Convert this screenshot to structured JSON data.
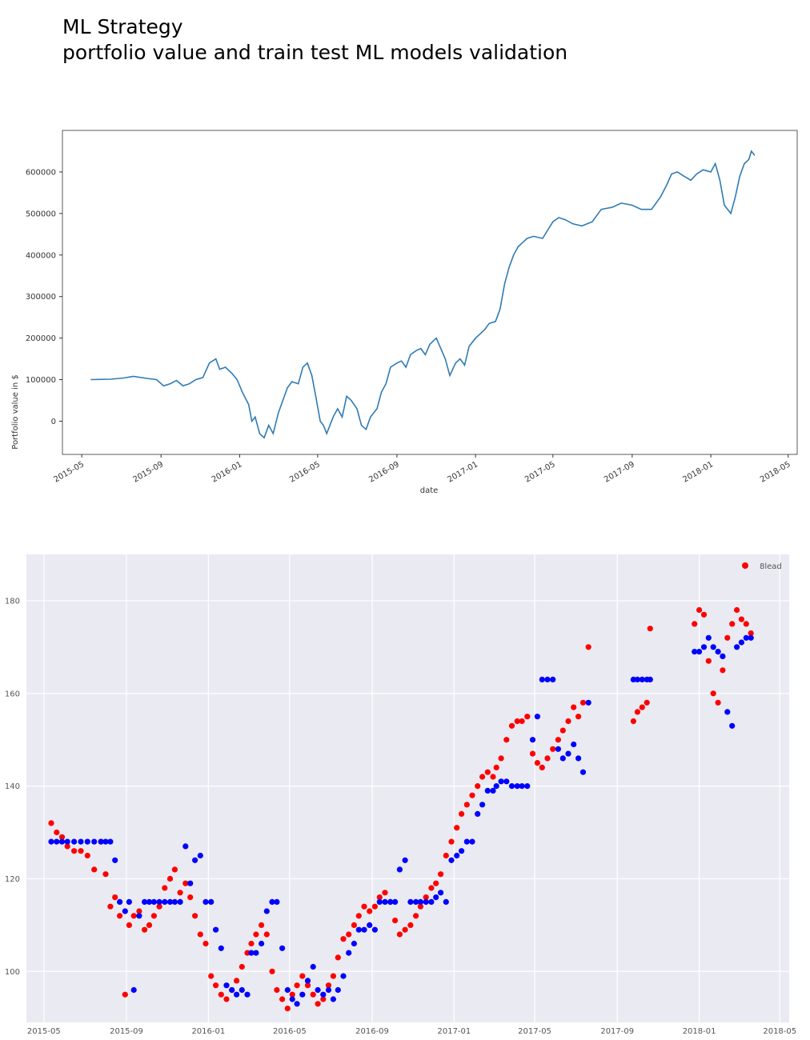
{
  "header": {
    "title": "ML Strategy",
    "subtitle": "portfolio value and train test ML models validation"
  },
  "chart_data": [
    {
      "type": "line",
      "title": "",
      "xlabel": "date",
      "ylabel": "Portfolio value in $",
      "xlim": [
        "2015-04-01",
        "2018-05-15"
      ],
      "ylim": [
        -80000,
        700000
      ],
      "yticks": [
        0,
        100000,
        200000,
        300000,
        400000,
        500000,
        600000
      ],
      "xticks": [
        "2015-05",
        "2015-09",
        "2016-01",
        "2016-05",
        "2016-09",
        "2017-01",
        "2017-05",
        "2017-09",
        "2018-01",
        "2018-05"
      ],
      "grid": false,
      "color": "#2f7bb3",
      "series": [
        {
          "x": [
            "2015-05-15",
            "2015-06-15",
            "2015-07-05",
            "2015-07-20",
            "2015-08-10",
            "2015-08-25",
            "2015-09-05",
            "2015-09-15",
            "2015-09-25",
            "2015-10-05",
            "2015-10-15",
            "2015-10-25",
            "2015-11-05",
            "2015-11-15",
            "2015-11-25",
            "2015-12-01",
            "2015-12-10",
            "2015-12-20",
            "2015-12-28",
            "2016-01-05",
            "2016-01-10",
            "2016-01-15",
            "2016-01-20",
            "2016-01-25",
            "2016-02-01",
            "2016-02-08",
            "2016-02-15",
            "2016-02-22",
            "2016-03-01",
            "2016-03-08",
            "2016-03-15",
            "2016-03-22",
            "2016-04-01",
            "2016-04-08",
            "2016-04-15",
            "2016-04-22",
            "2016-04-28",
            "2016-05-05",
            "2016-05-10",
            "2016-05-15",
            "2016-05-20",
            "2016-05-25",
            "2016-06-01",
            "2016-06-08",
            "2016-06-15",
            "2016-06-22",
            "2016-07-01",
            "2016-07-08",
            "2016-07-15",
            "2016-07-22",
            "2016-08-01",
            "2016-08-08",
            "2016-08-15",
            "2016-08-22",
            "2016-09-01",
            "2016-09-08",
            "2016-09-15",
            "2016-09-22",
            "2016-10-01",
            "2016-10-08",
            "2016-10-15",
            "2016-10-22",
            "2016-11-01",
            "2016-11-08",
            "2016-11-15",
            "2016-11-22",
            "2016-12-01",
            "2016-12-08",
            "2016-12-15",
            "2016-12-22",
            "2017-01-01",
            "2017-01-08",
            "2017-01-15",
            "2017-01-22",
            "2017-02-01",
            "2017-02-08",
            "2017-02-15",
            "2017-02-22",
            "2017-03-01",
            "2017-03-08",
            "2017-03-15",
            "2017-03-22",
            "2017-04-01",
            "2017-04-15",
            "2017-05-01",
            "2017-05-10",
            "2017-05-20",
            "2017-06-01",
            "2017-06-15",
            "2017-07-01",
            "2017-07-15",
            "2017-08-01",
            "2017-08-15",
            "2017-09-01",
            "2017-09-15",
            "2017-10-01",
            "2017-10-15",
            "2017-10-25",
            "2017-11-01",
            "2017-11-10",
            "2017-11-20",
            "2017-12-01",
            "2017-12-10",
            "2017-12-20",
            "2018-01-01",
            "2018-01-08",
            "2018-01-15",
            "2018-01-22",
            "2018-02-01",
            "2018-02-08",
            "2018-02-15",
            "2018-02-22",
            "2018-03-01",
            "2018-03-05",
            "2018-03-10"
          ],
          "y": [
            100000,
            101000,
            104000,
            108000,
            103000,
            100000,
            85000,
            90000,
            98000,
            85000,
            90000,
            100000,
            105000,
            140000,
            150000,
            125000,
            130000,
            115000,
            100000,
            70000,
            55000,
            40000,
            0,
            10000,
            -30000,
            -40000,
            -10000,
            -30000,
            20000,
            50000,
            80000,
            95000,
            90000,
            130000,
            140000,
            110000,
            60000,
            0,
            -10000,
            -30000,
            -10000,
            10000,
            30000,
            10000,
            60000,
            50000,
            30000,
            -10000,
            -20000,
            10000,
            30000,
            70000,
            90000,
            130000,
            140000,
            145000,
            130000,
            160000,
            170000,
            175000,
            160000,
            185000,
            200000,
            175000,
            150000,
            110000,
            140000,
            150000,
            135000,
            180000,
            200000,
            210000,
            220000,
            235000,
            240000,
            270000,
            330000,
            370000,
            400000,
            420000,
            430000,
            440000,
            445000,
            440000,
            480000,
            490000,
            485000,
            475000,
            470000,
            480000,
            510000,
            515000,
            525000,
            520000,
            510000,
            510000,
            540000,
            570000,
            595000,
            600000,
            590000,
            580000,
            595000,
            605000,
            600000,
            620000,
            580000,
            520000,
            500000,
            540000,
            590000,
            620000,
            630000,
            650000,
            640000
          ]
        }
      ]
    },
    {
      "type": "scatter",
      "title": "",
      "xlabel": "",
      "ylabel": "",
      "xlim": [
        "2015-04-05",
        "2018-05-15"
      ],
      "ylim": [
        89,
        190
      ],
      "yticks": [
        100,
        120,
        140,
        160,
        180
      ],
      "xticks": [
        "2015-05",
        "2015-09",
        "2016-01",
        "2016-05",
        "2016-09",
        "2017-01",
        "2017-05",
        "2017-09",
        "2018-01",
        "2018-05"
      ],
      "grid": true,
      "legend": "top-right",
      "legend_entries": [
        "8lead"
      ],
      "series": [
        {
          "name": "8lead",
          "color": "#ff0000",
          "x": [
            "2015-05-12",
            "2015-05-20",
            "2015-05-28",
            "2015-06-05",
            "2015-06-15",
            "2015-06-25",
            "2015-07-05",
            "2015-07-15",
            "2015-07-25",
            "2015-08-01",
            "2015-08-08",
            "2015-08-15",
            "2015-08-22",
            "2015-08-30",
            "2015-09-05",
            "2015-09-12",
            "2015-09-20",
            "2015-09-28",
            "2015-10-05",
            "2015-10-12",
            "2015-10-20",
            "2015-10-28",
            "2015-11-05",
            "2015-11-12",
            "2015-11-20",
            "2015-11-28",
            "2015-12-05",
            "2015-12-12",
            "2015-12-20",
            "2015-12-28",
            "2016-01-05",
            "2016-01-12",
            "2016-01-20",
            "2016-01-28",
            "2016-02-05",
            "2016-02-12",
            "2016-02-20",
            "2016-02-28",
            "2016-03-05",
            "2016-03-12",
            "2016-03-20",
            "2016-03-28",
            "2016-04-05",
            "2016-04-12",
            "2016-04-20",
            "2016-04-28",
            "2016-05-05",
            "2016-05-12",
            "2016-05-20",
            "2016-05-28",
            "2016-06-05",
            "2016-06-12",
            "2016-06-20",
            "2016-06-28",
            "2016-07-05",
            "2016-07-12",
            "2016-07-20",
            "2016-07-28",
            "2016-08-05",
            "2016-08-12",
            "2016-08-20",
            "2016-08-28",
            "2016-09-05",
            "2016-09-12",
            "2016-09-20",
            "2016-09-28",
            "2016-10-05",
            "2016-10-12",
            "2016-10-20",
            "2016-10-28",
            "2016-11-05",
            "2016-11-12",
            "2016-11-20",
            "2016-11-28",
            "2016-12-05",
            "2016-12-12",
            "2016-12-20",
            "2016-12-28",
            "2017-01-05",
            "2017-01-12",
            "2017-01-20",
            "2017-01-28",
            "2017-02-05",
            "2017-02-12",
            "2017-02-20",
            "2017-02-28",
            "2017-03-05",
            "2017-03-12",
            "2017-03-20",
            "2017-03-28",
            "2017-04-05",
            "2017-04-12",
            "2017-04-20",
            "2017-04-28",
            "2017-05-05",
            "2017-05-12",
            "2017-05-20",
            "2017-05-28",
            "2017-06-05",
            "2017-06-12",
            "2017-06-20",
            "2017-06-28",
            "2017-07-05",
            "2017-07-12",
            "2017-07-20",
            "2017-09-25",
            "2017-10-01",
            "2017-10-08",
            "2017-10-15",
            "2017-10-20",
            "2017-12-25",
            "2018-01-01",
            "2018-01-08",
            "2018-01-15",
            "2018-01-22",
            "2018-01-29",
            "2018-02-05",
            "2018-02-12",
            "2018-02-19",
            "2018-02-26",
            "2018-03-05",
            "2018-03-12",
            "2018-03-19"
          ],
          "y": [
            132,
            130,
            129,
            127,
            126,
            126,
            125,
            122,
            128,
            121,
            114,
            116,
            112,
            95,
            110,
            112,
            113,
            109,
            110,
            112,
            114,
            118,
            120,
            122,
            117,
            119,
            116,
            112,
            108,
            106,
            99,
            97,
            95,
            94,
            96,
            98,
            101,
            104,
            106,
            108,
            110,
            108,
            100,
            96,
            94,
            92,
            95,
            97,
            99,
            97,
            95,
            93,
            94,
            97,
            99,
            103,
            107,
            108,
            110,
            112,
            114,
            113,
            114,
            116,
            117,
            115,
            111,
            108,
            109,
            110,
            112,
            114,
            116,
            118,
            119,
            121,
            125,
            128,
            131,
            134,
            136,
            138,
            140,
            142,
            143,
            142,
            144,
            146,
            150,
            153,
            154,
            154,
            155,
            147,
            145,
            144,
            146,
            148,
            150,
            152,
            154,
            157,
            155,
            158,
            170,
            154,
            156,
            157,
            158,
            174,
            175,
            178,
            177,
            167,
            160,
            158,
            165,
            172,
            175,
            178,
            176,
            175,
            173
          ]
        },
        {
          "name": "",
          "color": "#0000ff",
          "x": [
            "2015-05-12",
            "2015-05-20",
            "2015-05-28",
            "2015-06-05",
            "2015-06-15",
            "2015-06-25",
            "2015-07-05",
            "2015-07-15",
            "2015-07-25",
            "2015-08-01",
            "2015-08-08",
            "2015-08-15",
            "2015-08-22",
            "2015-08-30",
            "2015-09-05",
            "2015-09-12",
            "2015-09-20",
            "2015-09-28",
            "2015-10-05",
            "2015-10-12",
            "2015-10-20",
            "2015-10-28",
            "2015-11-05",
            "2015-11-12",
            "2015-11-20",
            "2015-11-28",
            "2015-12-05",
            "2015-12-12",
            "2015-12-20",
            "2015-12-28",
            "2016-01-05",
            "2016-01-12",
            "2016-01-20",
            "2016-01-28",
            "2016-02-05",
            "2016-02-12",
            "2016-02-20",
            "2016-02-28",
            "2016-03-05",
            "2016-03-12",
            "2016-03-20",
            "2016-03-28",
            "2016-04-05",
            "2016-04-12",
            "2016-04-20",
            "2016-04-28",
            "2016-05-05",
            "2016-05-12",
            "2016-05-20",
            "2016-05-28",
            "2016-06-05",
            "2016-06-12",
            "2016-06-20",
            "2016-06-28",
            "2016-07-05",
            "2016-07-12",
            "2016-07-20",
            "2016-07-28",
            "2016-08-05",
            "2016-08-12",
            "2016-08-20",
            "2016-08-28",
            "2016-09-05",
            "2016-09-12",
            "2016-09-20",
            "2016-09-28",
            "2016-10-05",
            "2016-10-12",
            "2016-10-20",
            "2016-10-28",
            "2016-11-05",
            "2016-11-12",
            "2016-11-20",
            "2016-11-28",
            "2016-12-05",
            "2016-12-12",
            "2016-12-20",
            "2016-12-28",
            "2017-01-05",
            "2017-01-12",
            "2017-01-20",
            "2017-01-28",
            "2017-02-05",
            "2017-02-12",
            "2017-02-20",
            "2017-02-28",
            "2017-03-05",
            "2017-03-12",
            "2017-03-20",
            "2017-03-28",
            "2017-04-05",
            "2017-04-12",
            "2017-04-20",
            "2017-04-28",
            "2017-05-05",
            "2017-05-12",
            "2017-05-20",
            "2017-05-28",
            "2017-06-05",
            "2017-06-12",
            "2017-06-20",
            "2017-06-28",
            "2017-07-05",
            "2017-07-12",
            "2017-07-20",
            "2017-09-25",
            "2017-10-01",
            "2017-10-08",
            "2017-10-15",
            "2017-10-20",
            "2017-12-25",
            "2018-01-01",
            "2018-01-08",
            "2018-01-15",
            "2018-01-22",
            "2018-01-29",
            "2018-02-05",
            "2018-02-12",
            "2018-02-19",
            "2018-02-26",
            "2018-03-05",
            "2018-03-12",
            "2018-03-19"
          ],
          "y": [
            128,
            128,
            128,
            128,
            128,
            128,
            128,
            128,
            128,
            128,
            128,
            124,
            115,
            113,
            115,
            96,
            112,
            115,
            115,
            115,
            115,
            115,
            115,
            115,
            115,
            127,
            119,
            124,
            125,
            115,
            115,
            109,
            105,
            97,
            96,
            95,
            96,
            95,
            104,
            104,
            106,
            113,
            115,
            115,
            105,
            96,
            94,
            93,
            95,
            98,
            101,
            96,
            95,
            96,
            94,
            96,
            99,
            104,
            106,
            109,
            109,
            110,
            109,
            115,
            115,
            115,
            115,
            122,
            124,
            115,
            115,
            115,
            115,
            115,
            116,
            117,
            115,
            124,
            125,
            126,
            128,
            128,
            134,
            136,
            139,
            139,
            140,
            141,
            141,
            140,
            140,
            140,
            140,
            150,
            155,
            163,
            163,
            163,
            148,
            146,
            147,
            149,
            146,
            143,
            158,
            163,
            163,
            163,
            163,
            163,
            169,
            169,
            170,
            172,
            170,
            169,
            168,
            156,
            153,
            170,
            171,
            172,
            172
          ]
        }
      ]
    }
  ]
}
